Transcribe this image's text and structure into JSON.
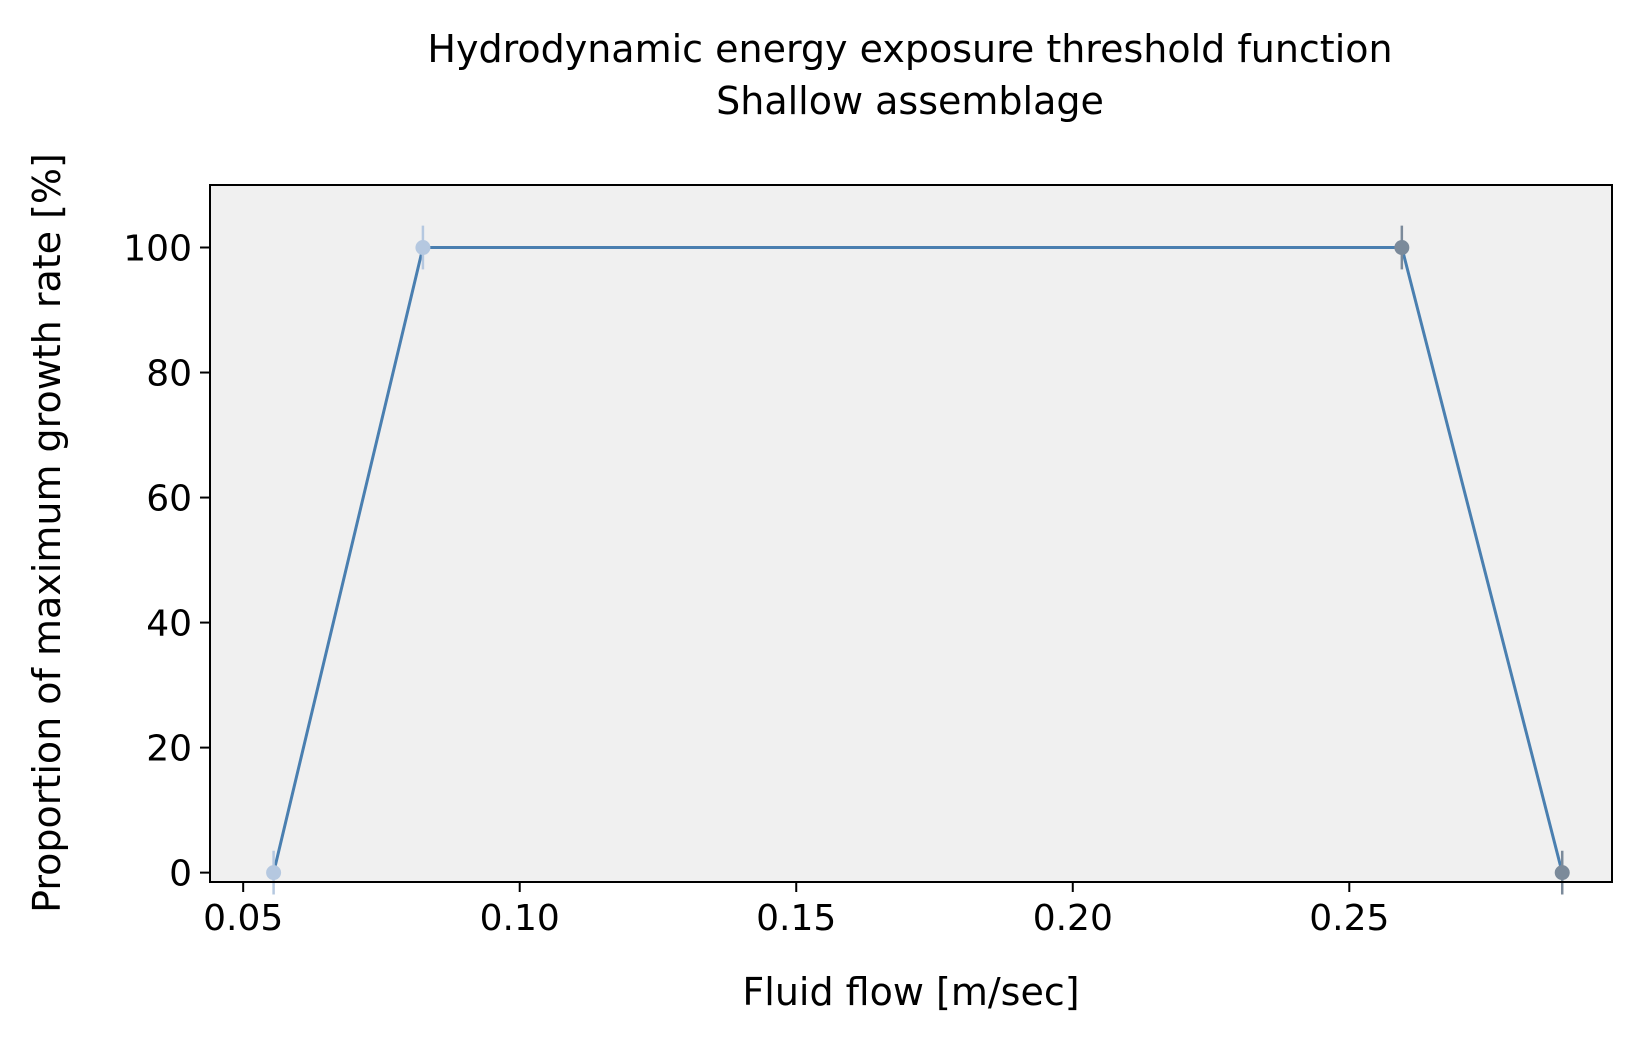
{
  "chart_data": {
    "type": "line",
    "title": "Hydrodynamic energy exposure threshold function",
    "subtitle": "Shallow assemblage",
    "xlabel": "Fluid flow [m/sec]",
    "ylabel": "Proportion of maximum growth rate [%]",
    "xlim": [
      0.044,
      0.2975
    ],
    "ylim": [
      -1.5,
      110
    ],
    "x_ticks": [
      {
        "value": 0.05,
        "label": "0.05"
      },
      {
        "value": 0.1,
        "label": "0.10"
      },
      {
        "value": 0.15,
        "label": "0.15"
      },
      {
        "value": 0.2,
        "label": "0.20"
      },
      {
        "value": 0.25,
        "label": "0.25"
      }
    ],
    "y_ticks": [
      {
        "value": 0,
        "label": "0"
      },
      {
        "value": 20,
        "label": "20"
      },
      {
        "value": 40,
        "label": "40"
      },
      {
        "value": 60,
        "label": "60"
      },
      {
        "value": 80,
        "label": "80"
      },
      {
        "value": 100,
        "label": "100"
      }
    ],
    "grid": false,
    "series": [
      {
        "x": [
          0.0555,
          0.0825,
          0.2595,
          0.2885
        ],
        "y": [
          0,
          100,
          100,
          0
        ],
        "line_color": "#4a7fb0",
        "point_colors": [
          "#b5c8e0",
          "#b5c8e0",
          "#7b8a9a",
          "#7b8a9a"
        ],
        "error": [
          3.5,
          3.5,
          3.5,
          3.5
        ]
      }
    ],
    "plot_background": "#f0f0f0"
  }
}
